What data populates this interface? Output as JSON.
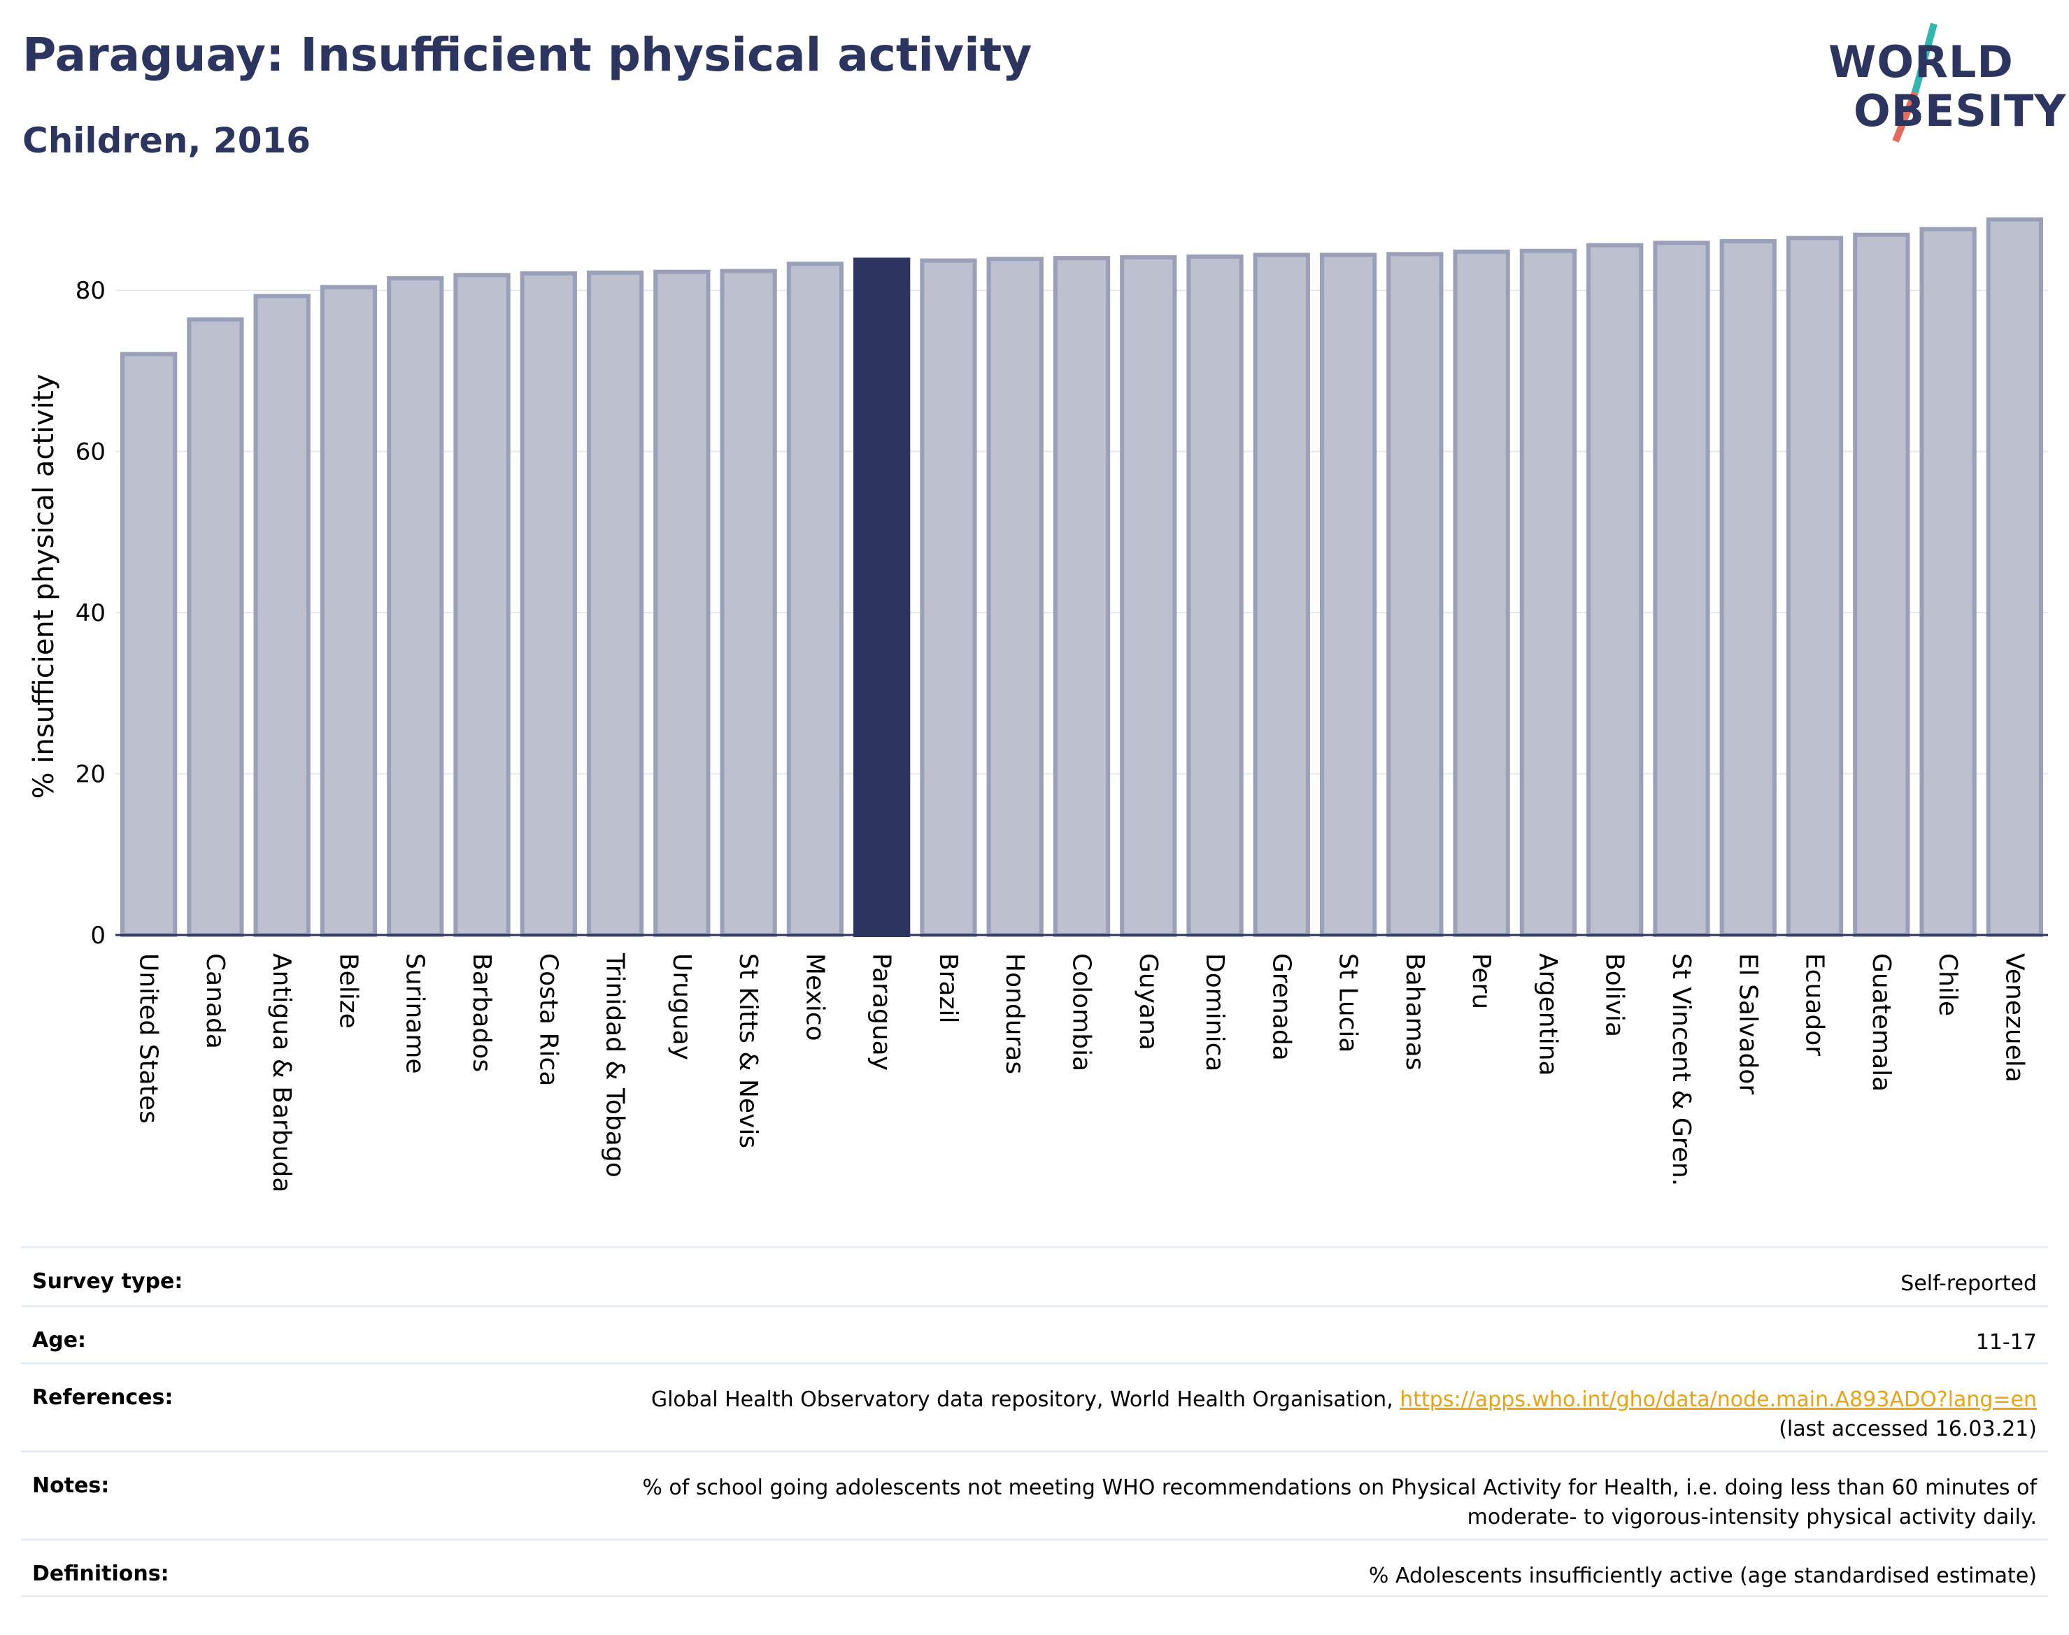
{
  "header": {
    "title": "Paraguay: Insufficient physical activity",
    "subtitle": "Children, 2016"
  },
  "logo": {
    "line1": "WORLD",
    "line2": "OBESITY",
    "slash_colors": [
      "#2fb7b0",
      "#e56a5c"
    ]
  },
  "colors": {
    "highlight_bar": "#2b3560",
    "other_bar": "#bcc0cf",
    "other_bar_border": "#9aa0b8",
    "text_dark": "#2b3560",
    "link": "#e8a317"
  },
  "chart_data": {
    "type": "bar",
    "title": "",
    "xlabel": "",
    "ylabel": "% insufficient physical activity",
    "ylim": [
      0,
      90
    ],
    "yticks": [
      0,
      20,
      40,
      60,
      80
    ],
    "grid": true,
    "highlight": "Paraguay",
    "categories": [
      "United States",
      "Canada",
      "Antigua & Barbuda",
      "Belize",
      "Suriname",
      "Barbados",
      "Costa Rica",
      "Trinidad & Tobago",
      "Uruguay",
      "St Kitts & Nevis",
      "Mexico",
      "Paraguay",
      "Brazil",
      "Honduras",
      "Colombia",
      "Guyana",
      "Dominica",
      "Grenada",
      "St Lucia",
      "Bahamas",
      "Peru",
      "Argentina",
      "Bolivia",
      "St Vincent & Gren.",
      "El Salvador",
      "Ecuador",
      "Guatemala",
      "Chile",
      "Venezuela"
    ],
    "values": [
      72.1,
      76.4,
      79.3,
      80.4,
      81.5,
      81.9,
      82.1,
      82.2,
      82.3,
      82.4,
      83.3,
      83.8,
      83.7,
      83.9,
      84.0,
      84.1,
      84.2,
      84.4,
      84.4,
      84.5,
      84.8,
      84.9,
      85.6,
      85.9,
      86.1,
      86.5,
      86.9,
      87.6,
      88.8
    ]
  },
  "info": {
    "survey_label": "Survey type:",
    "survey_value": "Self-reported",
    "age_label": "Age:",
    "age_value": "11-17",
    "references_label": "References:",
    "references_text": "Global Health Observatory data repository, World Health Organisation, ",
    "references_link": "https://apps.who.int/gho/data/node.main.A893ADO?lang=en",
    "references_accessed": "(last accessed 16.03.21)",
    "notes_label": "Notes:",
    "notes_value": "% of school going adolescents not meeting WHO recommendations on Physical Activity for Health, i.e. doing less than 60 minutes of moderate- to vigorous-intensity physical activity daily.",
    "definitions_label": "Definitions:",
    "definitions_value": "% Adolescents insufficiently active (age standardised estimate)"
  }
}
